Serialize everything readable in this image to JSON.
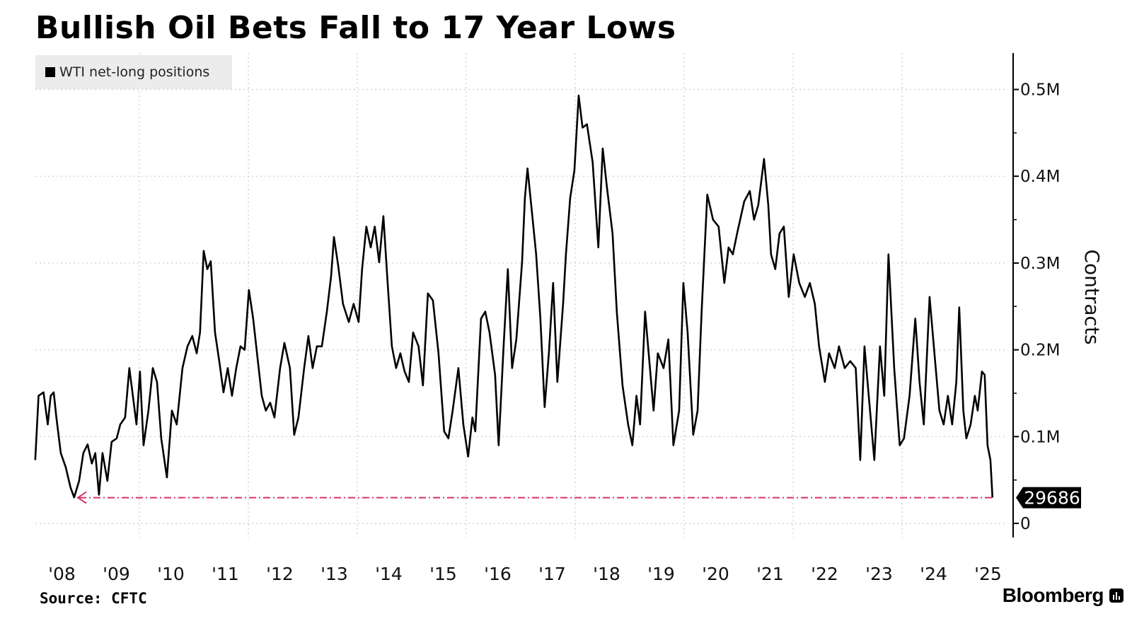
{
  "title": "Bullish Oil Bets Fall to 17 Year Lows",
  "source": "Source: CFTC",
  "brand": "Bloomberg",
  "brand_icon": "bloomberg-terminal-icon",
  "colors": {
    "line": "#000000",
    "annotation": "#d6336c",
    "grid": "#cccccc",
    "legend_bg": "#ececec"
  },
  "chart_data": {
    "type": "line",
    "title": "Bullish Oil Bets Fall to 17 Year Lows",
    "xlabel": "",
    "ylabel": "Contracts",
    "y_axis_side": "right",
    "ylim": [
      0,
      540000
    ],
    "y_ticks": [
      {
        "value": 0,
        "label": "0"
      },
      {
        "value": 100000,
        "label": "0.1M"
      },
      {
        "value": 200000,
        "label": "0.2M"
      },
      {
        "value": 300000,
        "label": "0.3M"
      },
      {
        "value": 400000,
        "label": "0.4M"
      },
      {
        "value": 500000,
        "label": "0.5M"
      }
    ],
    "x_ticks": [
      "'08",
      "'09",
      "'10",
      "'11",
      "'12",
      "'13",
      "'14",
      "'15",
      "'16",
      "'17",
      "'18",
      "'19",
      "'20",
      "'21",
      "'22",
      "'23",
      "'24",
      "'25"
    ],
    "grid": true,
    "legend": {
      "placement": "top-left",
      "entries": [
        "WTI net-long positions"
      ]
    },
    "annotation": {
      "label": "29686",
      "value": 29686,
      "style": "dash-dot reference line from latest value back to 2008 low"
    },
    "series": [
      {
        "name": "WTI net-long positions",
        "points": [
          [
            "2008-02-03",
            73000
          ],
          [
            "2008-02-25",
            147000
          ],
          [
            "2008-03-28",
            151000
          ],
          [
            "2008-04-26",
            114000
          ],
          [
            "2008-05-15",
            147000
          ],
          [
            "2008-06-05",
            151000
          ],
          [
            "2008-06-23",
            122000
          ],
          [
            "2008-07-22",
            81000
          ],
          [
            "2008-08-24",
            65000
          ],
          [
            "2008-09-27",
            41000
          ],
          [
            "2008-10-20",
            30000
          ],
          [
            "2008-11-23",
            49000
          ],
          [
            "2008-12-21",
            81000
          ],
          [
            "2009-01-19",
            91000
          ],
          [
            "2009-02-17",
            69000
          ],
          [
            "2009-03-10",
            81000
          ],
          [
            "2009-04-04",
            33000
          ],
          [
            "2009-04-28",
            81000
          ],
          [
            "2009-05-30",
            49000
          ],
          [
            "2009-06-28",
            94000
          ],
          [
            "2009-08-01",
            98000
          ],
          [
            "2009-08-25",
            114000
          ],
          [
            "2009-09-27",
            122000
          ],
          [
            "2009-10-25",
            179000
          ],
          [
            "2009-11-18",
            147000
          ],
          [
            "2009-12-12",
            114000
          ],
          [
            "2010-01-05",
            175000
          ],
          [
            "2010-01-29",
            90000
          ],
          [
            "2010-03-01",
            130000
          ],
          [
            "2010-03-30",
            179000
          ],
          [
            "2010-04-28",
            163000
          ],
          [
            "2010-05-26",
            98000
          ],
          [
            "2010-07-03",
            53000
          ],
          [
            "2010-08-06",
            130000
          ],
          [
            "2010-09-08",
            114000
          ],
          [
            "2010-10-16",
            179000
          ],
          [
            "2010-11-19",
            204000
          ],
          [
            "2010-12-21",
            216000
          ],
          [
            "2011-01-20",
            196000
          ],
          [
            "2011-02-12",
            220000
          ],
          [
            "2011-03-06",
            314000
          ],
          [
            "2011-03-30",
            293000
          ],
          [
            "2011-04-23",
            302000
          ],
          [
            "2011-05-21",
            220000
          ],
          [
            "2011-06-19",
            187000
          ],
          [
            "2011-07-17",
            151000
          ],
          [
            "2011-08-15",
            179000
          ],
          [
            "2011-09-13",
            147000
          ],
          [
            "2011-10-11",
            179000
          ],
          [
            "2011-11-09",
            204000
          ],
          [
            "2011-12-07",
            200000
          ],
          [
            "2012-01-05",
            269000
          ],
          [
            "2012-02-03",
            236000
          ],
          [
            "2012-03-01",
            192000
          ],
          [
            "2012-03-30",
            147000
          ],
          [
            "2012-04-27",
            130000
          ],
          [
            "2012-05-26",
            139000
          ],
          [
            "2012-06-24",
            122000
          ],
          [
            "2012-08-01",
            179000
          ],
          [
            "2012-08-30",
            208000
          ],
          [
            "2012-10-06",
            179000
          ],
          [
            "2012-11-04",
            102000
          ],
          [
            "2012-12-02",
            122000
          ],
          [
            "2013-01-10",
            179000
          ],
          [
            "2013-02-08",
            216000
          ],
          [
            "2013-03-06",
            179000
          ],
          [
            "2013-04-04",
            204000
          ],
          [
            "2013-05-07",
            204000
          ],
          [
            "2013-06-10",
            244000
          ],
          [
            "2013-07-08",
            285000
          ],
          [
            "2013-07-27",
            330000
          ],
          [
            "2013-08-25",
            297000
          ],
          [
            "2013-09-27",
            253000
          ],
          [
            "2013-11-05",
            232000
          ],
          [
            "2013-12-07",
            253000
          ],
          [
            "2014-01-10",
            232000
          ],
          [
            "2014-02-03",
            293000
          ],
          [
            "2014-03-01",
            342000
          ],
          [
            "2014-03-30",
            318000
          ],
          [
            "2014-04-27",
            342000
          ],
          [
            "2014-05-26",
            301000
          ],
          [
            "2014-06-24",
            354000
          ],
          [
            "2014-07-22",
            277000
          ],
          [
            "2014-08-20",
            204000
          ],
          [
            "2014-09-18",
            179000
          ],
          [
            "2014-10-16",
            196000
          ],
          [
            "2014-11-14",
            175000
          ],
          [
            "2014-12-12",
            163000
          ],
          [
            "2015-01-10",
            220000
          ],
          [
            "2015-02-16",
            204000
          ],
          [
            "2015-03-15",
            159000
          ],
          [
            "2015-04-18",
            265000
          ],
          [
            "2015-05-21",
            257000
          ],
          [
            "2015-06-28",
            196000
          ],
          [
            "2015-08-05",
            106000
          ],
          [
            "2015-09-03",
            98000
          ],
          [
            "2015-10-01",
            130000
          ],
          [
            "2015-11-09",
            179000
          ],
          [
            "2015-12-12",
            114000
          ],
          [
            "2016-01-14",
            77000
          ],
          [
            "2016-02-12",
            122000
          ],
          [
            "2016-03-01",
            106000
          ],
          [
            "2016-04-09",
            236000
          ],
          [
            "2016-05-07",
            244000
          ],
          [
            "2016-06-05",
            220000
          ],
          [
            "2016-07-12",
            171000
          ],
          [
            "2016-08-05",
            90000
          ],
          [
            "2016-09-08",
            204000
          ],
          [
            "2016-10-06",
            293000
          ],
          [
            "2016-11-04",
            179000
          ],
          [
            "2016-12-02",
            212000
          ],
          [
            "2017-01-10",
            301000
          ],
          [
            "2017-01-29",
            375000
          ],
          [
            "2017-02-16",
            409000
          ],
          [
            "2017-03-15",
            359000
          ],
          [
            "2017-04-13",
            310000
          ],
          [
            "2017-05-11",
            236000
          ],
          [
            "2017-06-09",
            134000
          ],
          [
            "2017-07-07",
            196000
          ],
          [
            "2017-08-05",
            277000
          ],
          [
            "2017-09-03",
            163000
          ],
          [
            "2017-10-11",
            253000
          ],
          [
            "2017-10-30",
            310000
          ],
          [
            "2017-11-28",
            375000
          ],
          [
            "2017-12-26",
            407000
          ],
          [
            "2018-01-24",
            493000
          ],
          [
            "2018-02-20",
            456000
          ],
          [
            "2018-03-19",
            460000
          ],
          [
            "2018-04-27",
            416000
          ],
          [
            "2018-06-04",
            318000
          ],
          [
            "2018-07-03",
            432000
          ],
          [
            "2018-08-01",
            387000
          ],
          [
            "2018-09-08",
            334000
          ],
          [
            "2018-10-06",
            244000
          ],
          [
            "2018-11-14",
            159000
          ],
          [
            "2018-12-21",
            114000
          ],
          [
            "2019-01-19",
            90000
          ],
          [
            "2019-02-16",
            147000
          ],
          [
            "2019-03-10",
            114000
          ],
          [
            "2019-04-13",
            244000
          ],
          [
            "2019-05-11",
            187000
          ],
          [
            "2019-06-09",
            130000
          ],
          [
            "2019-07-07",
            196000
          ],
          [
            "2019-08-15",
            179000
          ],
          [
            "2019-09-17",
            212000
          ],
          [
            "2019-10-20",
            90000
          ],
          [
            "2019-11-28",
            130000
          ],
          [
            "2019-12-26",
            277000
          ],
          [
            "2020-01-24",
            220000
          ],
          [
            "2020-03-01",
            102000
          ],
          [
            "2020-03-30",
            130000
          ],
          [
            "2020-04-27",
            244000
          ],
          [
            "2020-06-04",
            379000
          ],
          [
            "2020-07-12",
            350000
          ],
          [
            "2020-08-19",
            342000
          ],
          [
            "2020-09-27",
            277000
          ],
          [
            "2020-10-25",
            318000
          ],
          [
            "2020-11-23",
            310000
          ],
          [
            "2020-12-21",
            334000
          ],
          [
            "2021-02-08",
            371000
          ],
          [
            "2021-03-15",
            383000
          ],
          [
            "2021-04-13",
            350000
          ],
          [
            "2021-05-11",
            367000
          ],
          [
            "2021-06-19",
            420000
          ],
          [
            "2021-07-17",
            367000
          ],
          [
            "2021-08-05",
            310000
          ],
          [
            "2021-09-03",
            293000
          ],
          [
            "2021-10-01",
            334000
          ],
          [
            "2021-10-30",
            342000
          ],
          [
            "2021-12-02",
            261000
          ],
          [
            "2022-01-05",
            310000
          ],
          [
            "2022-02-12",
            277000
          ],
          [
            "2022-03-19",
            261000
          ],
          [
            "2022-04-22",
            277000
          ],
          [
            "2022-05-25",
            253000
          ],
          [
            "2022-06-23",
            204000
          ],
          [
            "2022-08-01",
            163000
          ],
          [
            "2022-08-29",
            196000
          ],
          [
            "2022-10-06",
            179000
          ],
          [
            "2022-11-04",
            204000
          ],
          [
            "2022-12-12",
            179000
          ],
          [
            "2023-01-19",
            187000
          ],
          [
            "2023-02-25",
            179000
          ],
          [
            "2023-03-25",
            73000
          ],
          [
            "2023-04-23",
            204000
          ],
          [
            "2023-05-21",
            147000
          ],
          [
            "2023-06-28",
            73000
          ],
          [
            "2023-08-05",
            204000
          ],
          [
            "2023-09-03",
            147000
          ],
          [
            "2023-10-01",
            310000
          ],
          [
            "2023-11-09",
            179000
          ],
          [
            "2023-12-16",
            90000
          ],
          [
            "2024-01-14",
            98000
          ],
          [
            "2024-02-21",
            147000
          ],
          [
            "2024-03-29",
            236000
          ],
          [
            "2024-04-27",
            163000
          ],
          [
            "2024-05-25",
            114000
          ],
          [
            "2024-07-03",
            261000
          ],
          [
            "2024-08-01",
            204000
          ],
          [
            "2024-09-08",
            130000
          ],
          [
            "2024-10-06",
            114000
          ],
          [
            "2024-11-04",
            147000
          ],
          [
            "2024-12-02",
            114000
          ],
          [
            "2024-12-30",
            163000
          ],
          [
            "2025-01-19",
            249000
          ],
          [
            "2025-02-16",
            130000
          ],
          [
            "2025-03-06",
            98000
          ],
          [
            "2025-04-04",
            114000
          ],
          [
            "2025-05-02",
            147000
          ],
          [
            "2025-05-21",
            130000
          ],
          [
            "2025-06-19",
            175000
          ],
          [
            "2025-07-07",
            171000
          ],
          [
            "2025-07-26",
            90000
          ],
          [
            "2025-08-15",
            73000
          ],
          [
            "2025-08-29",
            29686
          ]
        ]
      }
    ]
  }
}
